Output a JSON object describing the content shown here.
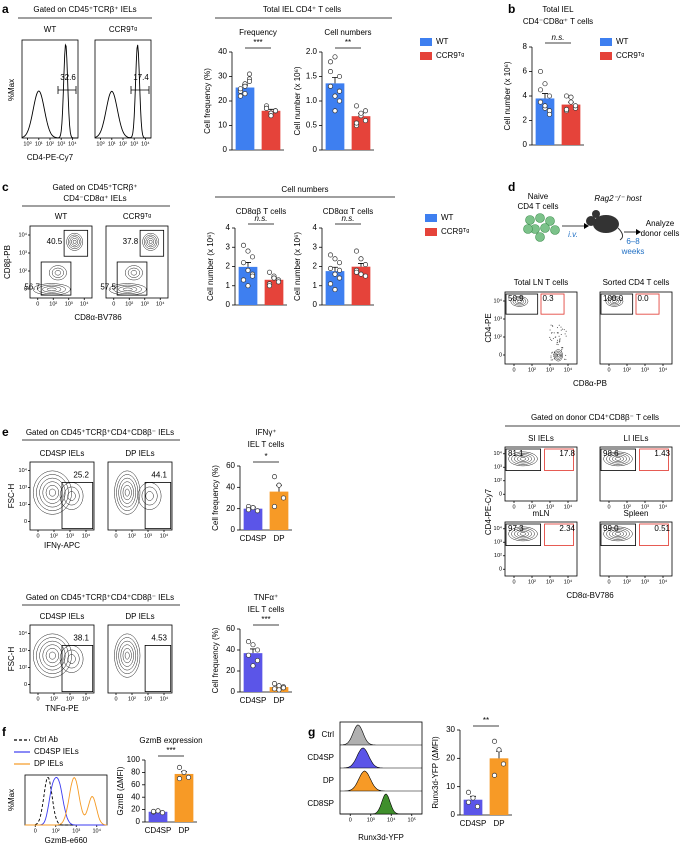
{
  "panels": {
    "a": {
      "label": "a",
      "gate": "Gated on CD45⁺TCRβ⁺ IELs",
      "samples": [
        "WT",
        "CCR9ᵀᵍ"
      ],
      "gate_percents": [
        "32.6",
        "17.4"
      ],
      "y_label": "%Max",
      "x_label": "CD4-PE-Cy7",
      "header": "Total IEL CD4⁺ T cells",
      "legend": {
        "names": [
          "WT",
          "CCR9ᵀᵍ"
        ],
        "colors": [
          "#3e7ff0",
          "#e5433a"
        ]
      }
    },
    "b": {
      "label": "b",
      "legend": {
        "names": [
          "WT",
          "CCR9ᵀᵍ"
        ],
        "colors": [
          "#3e7ff0",
          "#e5433a"
        ]
      }
    },
    "c": {
      "label": "c",
      "gate": [
        "Gated on CD45⁺TCRβ⁺",
        "CD4⁻CD8α⁺ IELs"
      ],
      "samples": [
        "WT",
        "CCR9ᵀᵍ"
      ],
      "gate_percents": [
        [
          "40.5",
          "56.7"
        ],
        [
          "37.8",
          "57.5"
        ]
      ],
      "y_label": "CD8β-PB",
      "x_label": "CD8α-BV786",
      "header": "Cell numbers",
      "legend": {
        "names": [
          "WT",
          "CCR9ᵀᵍ"
        ],
        "colors": [
          "#3e7ff0",
          "#e5433a"
        ]
      }
    },
    "d": {
      "label": "d",
      "scheme": {
        "donor": [
          "Naive",
          "CD4 T cells"
        ],
        "route": "i.v.",
        "host": "Rag2⁻/⁻ host",
        "time": [
          "6–8",
          "weeks"
        ],
        "readout": [
          "Analyze",
          "donor cells"
        ]
      },
      "input": {
        "titles": [
          "Total LN T cells",
          "Sorted CD4 T cells"
        ],
        "gate_percents": [
          [
            "50.9",
            "0.3"
          ],
          [
            "100.0",
            "0.0"
          ]
        ],
        "y_label": "CD4-PE",
        "x_label": "CD8α-PB"
      },
      "donor": {
        "gate": "Gated on donor CD4⁺CD8β⁻ T cells",
        "titles": [
          "SI IELs",
          "LI IELs",
          "mLN",
          "Spleen"
        ],
        "gate_percents": [
          [
            "81.1",
            "17.8"
          ],
          [
            "98.6",
            "1.43"
          ],
          [
            "97.3",
            "2.34"
          ],
          [
            "99.0",
            "0.51"
          ]
        ],
        "y_label": "CD4-PE-Cy7",
        "x_label": "CD8α-BV786"
      }
    },
    "e": {
      "label": "e",
      "y_label": "FSC-H",
      "rows": [
        {
          "gate": "Gated on CD45⁺TCRβ⁺CD4⁺CD8β⁻ IELs",
          "samples": [
            "CD4SP IELs",
            "DP IELs"
          ],
          "gate_percents": [
            "25.2",
            "44.1"
          ],
          "x_label": "IFNγ-APC"
        },
        {
          "gate": "Gated on CD45⁺TCRβ⁺CD4⁺CD8β⁻ IELs",
          "samples": [
            "CD4SP IELs",
            "DP IELs"
          ],
          "gate_percents": [
            "38.1",
            "4.53"
          ],
          "x_label": "TNFα-PE"
        }
      ]
    },
    "f": {
      "label": "f",
      "legend": [
        "Ctrl Ab",
        "CD4SP IELs",
        "DP IELs"
      ],
      "colors": [
        "#000000",
        "#3b3bf0",
        "#f59a23"
      ],
      "y_label": "%Max",
      "x_label": "GzmB-e660"
    },
    "g": {
      "label": "g",
      "rows": [
        "Ctrl",
        "CD4SP",
        "DP",
        "CD8SP"
      ],
      "colors": [
        "#b0b0b0",
        "#5b55e8",
        "#f79a26",
        "#3f8f2c"
      ],
      "x_label": "Runx3d-YFP",
      "x_ticks": [
        "0",
        "10³",
        "10⁴",
        "10⁵"
      ]
    }
  },
  "hist_ticks": [
    "10⁰",
    "10¹",
    "10²",
    "10³",
    "10⁴"
  ],
  "flow_ticks": [
    "0",
    "10²",
    "10³",
    "10⁴"
  ],
  "chart_data": [
    {
      "type": "bar",
      "title": "Frequency",
      "y_label": "Cell frequency (%)",
      "ylim": [
        0,
        40
      ],
      "yticks": [
        0,
        10,
        20,
        30,
        40
      ],
      "values": [
        25.5,
        16
      ],
      "errors": [
        1,
        0.6
      ],
      "points": [
        [
          24,
          27,
          31,
          22,
          26,
          29,
          25,
          23,
          28
        ],
        [
          17,
          15,
          16,
          18,
          14,
          16,
          17
        ]
      ],
      "colors": [
        "#3e7ff0",
        "#e5433a"
      ],
      "significance": "***"
    },
    {
      "type": "bar",
      "title": "Cell numbers",
      "y_label": "Cell number (x 10⁶)",
      "ylim": [
        0,
        2
      ],
      "yticks": [
        0,
        0.5,
        {
          "value": 1,
          "label": "1.0"
        },
        1.5,
        {
          "value": 2,
          "label": "2.0"
        }
      ],
      "values": [
        1.36,
        0.69
      ],
      "errors": [
        0.12,
        0.06
      ],
      "points": [
        [
          1.8,
          1.9,
          1.5,
          1.3,
          1.1,
          1.0,
          1.6,
          0.8,
          1.2
        ],
        [
          0.9,
          0.7,
          0.6,
          0.5,
          0.75,
          0.8,
          0.55
        ]
      ],
      "colors": [
        "#3e7ff0",
        "#e5433a"
      ],
      "significance": "**"
    },
    {
      "type": "bar",
      "title": [
        "Total IEL",
        "CD4⁻CD8α⁺ T cells"
      ],
      "y_label": "Cell number (x 10⁶)",
      "ylim": [
        0,
        8
      ],
      "yticks": [
        0,
        2,
        4,
        6,
        8
      ],
      "values": [
        3.8,
        3.3
      ],
      "errors": [
        0.4,
        0.2
      ],
      "points": [
        [
          6,
          5,
          4,
          3.5,
          3,
          2.8,
          4.5,
          3.2,
          2.5
        ],
        [
          4,
          3.5,
          3,
          2.8,
          3.9,
          3.2,
          2.9
        ]
      ],
      "colors": [
        "#3e7ff0",
        "#e5433a"
      ],
      "significance": "n.s."
    },
    {
      "type": "bar",
      "title": "CD8αβ T cells",
      "y_label": "Cell number (x 10⁶)",
      "ylim": [
        0,
        4
      ],
      "yticks": [
        0,
        1,
        2,
        3,
        4
      ],
      "values": [
        1.98,
        1.31
      ],
      "errors": [
        0.23,
        0.1
      ],
      "points": [
        [
          3.1,
          2.8,
          2.5,
          2.2,
          1.8,
          1.6,
          1.3,
          1.0,
          1.5
        ],
        [
          1.7,
          1.5,
          1.3,
          1.1,
          1.4,
          1.2,
          1.0
        ]
      ],
      "colors": [
        "#3e7ff0",
        "#e5433a"
      ],
      "significance": "n.s."
    },
    {
      "type": "bar",
      "title": "CD8αα T cells",
      "y_label": "Cell number (x 10⁶)",
      "ylim": [
        0,
        4
      ],
      "yticks": [
        0,
        1,
        2,
        3,
        4
      ],
      "values": [
        1.76,
        1.99
      ],
      "errors": [
        0.2,
        0.17
      ],
      "points": [
        [
          2.6,
          2.4,
          2.2,
          1.9,
          1.6,
          1.4,
          1.1,
          0.8,
          1.8
        ],
        [
          2.8,
          2.4,
          2.1,
          1.8,
          1.6,
          1.5,
          1.7
        ]
      ],
      "colors": [
        "#3e7ff0",
        "#e5433a"
      ],
      "significance": "n.s."
    },
    {
      "type": "bar",
      "title": [
        "IFNγ⁺",
        "IEL T cells"
      ],
      "y_label": "Cell frequency (%)",
      "categories": [
        "CD4SP",
        "DP"
      ],
      "ylim": [
        0,
        60
      ],
      "yticks": [
        0,
        20,
        40,
        60
      ],
      "values": [
        20,
        36
      ],
      "errors": [
        1.5,
        6
      ],
      "points": [
        [
          22,
          21,
          18,
          19
        ],
        [
          50,
          42,
          30,
          22
        ]
      ],
      "colors": [
        "#5b55e8",
        "#f79a26"
      ],
      "significance": "*"
    },
    {
      "type": "bar",
      "title": [
        "TNFα⁺",
        "IEL T cells"
      ],
      "y_label": "Cell frequency (%)",
      "categories": [
        "CD4SP",
        "DP"
      ],
      "ylim": [
        0,
        60
      ],
      "yticks": [
        0,
        20,
        40,
        60
      ],
      "values": [
        37,
        4.7
      ],
      "errors": [
        4,
        1
      ],
      "points": [
        [
          48,
          45,
          40,
          35,
          25,
          30
        ],
        [
          8,
          6,
          5,
          3,
          2,
          4
        ]
      ],
      "colors": [
        "#5b55e8",
        "#f79a26"
      ],
      "significance": "***"
    },
    {
      "type": "bar",
      "title": "GzmB expression",
      "y_label": "GzmB (ΔMFI)",
      "categories": [
        "CD4SP",
        "DP"
      ],
      "ylim": [
        0,
        100
      ],
      "yticks": [
        0,
        20,
        40,
        60,
        80,
        100
      ],
      "values": [
        16.5,
        77.5
      ],
      "errors": [
        1,
        4
      ],
      "points": [
        [
          16,
          18,
          15,
          17
        ],
        [
          88,
          80,
          72,
          70
        ]
      ],
      "colors": [
        "#5b55e8",
        "#f79a26"
      ],
      "significance": "***"
    },
    {
      "type": "bar",
      "y_label": "Runx3d-YFP (ΔMFI)",
      "categories": [
        "CD4SP",
        "DP"
      ],
      "ylim": [
        0,
        30
      ],
      "yticks": [
        0,
        10,
        20,
        30
      ],
      "values": [
        5.4,
        20
      ],
      "errors": [
        1.2,
        2.5
      ],
      "points": [
        [
          8,
          6,
          3,
          4.5
        ],
        [
          26,
          23,
          18,
          14
        ]
      ],
      "colors": [
        "#5b55e8",
        "#f79a26"
      ],
      "significance": "**"
    }
  ]
}
